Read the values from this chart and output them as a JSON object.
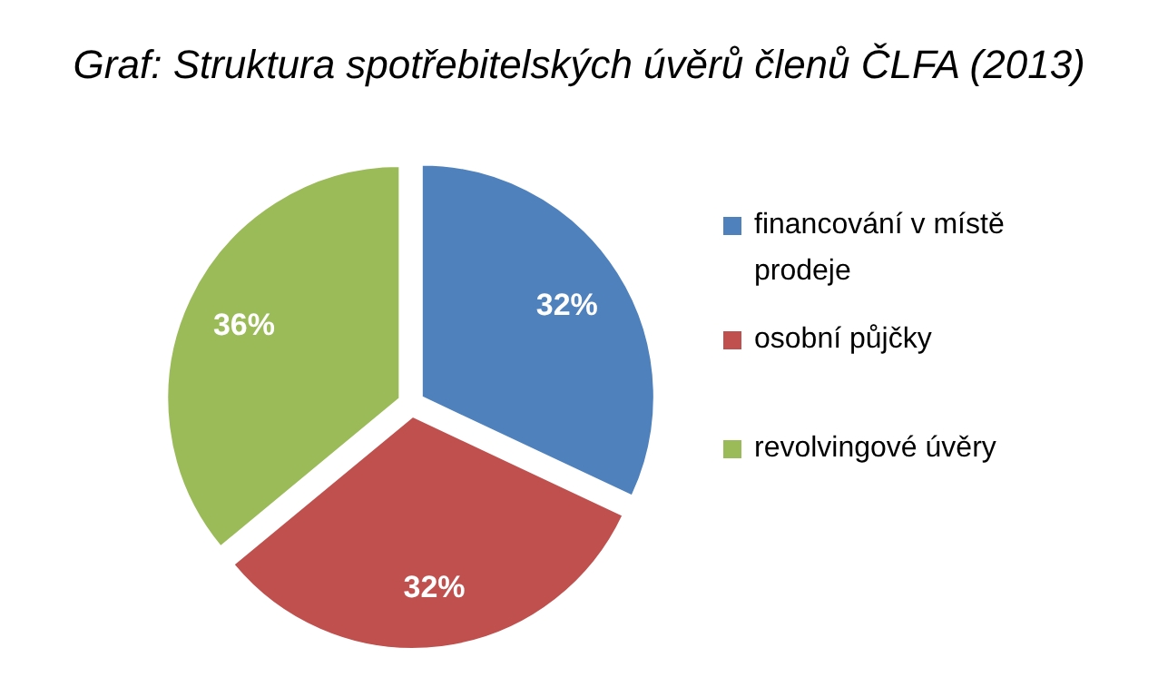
{
  "chart_data": {
    "type": "pie",
    "title": "Graf: Struktura spotřebitelských úvěrů členů ČLFA (2013)",
    "categories": [
      "financování v místě prodeje",
      "osobní půjčky",
      "revolvingové úvěry"
    ],
    "values": [
      32,
      32,
      36
    ],
    "colors": [
      "#4f81bd",
      "#c0504d",
      "#9bbb59"
    ],
    "value_labels": [
      "32%",
      "32%",
      "36%"
    ],
    "legend": "right"
  }
}
